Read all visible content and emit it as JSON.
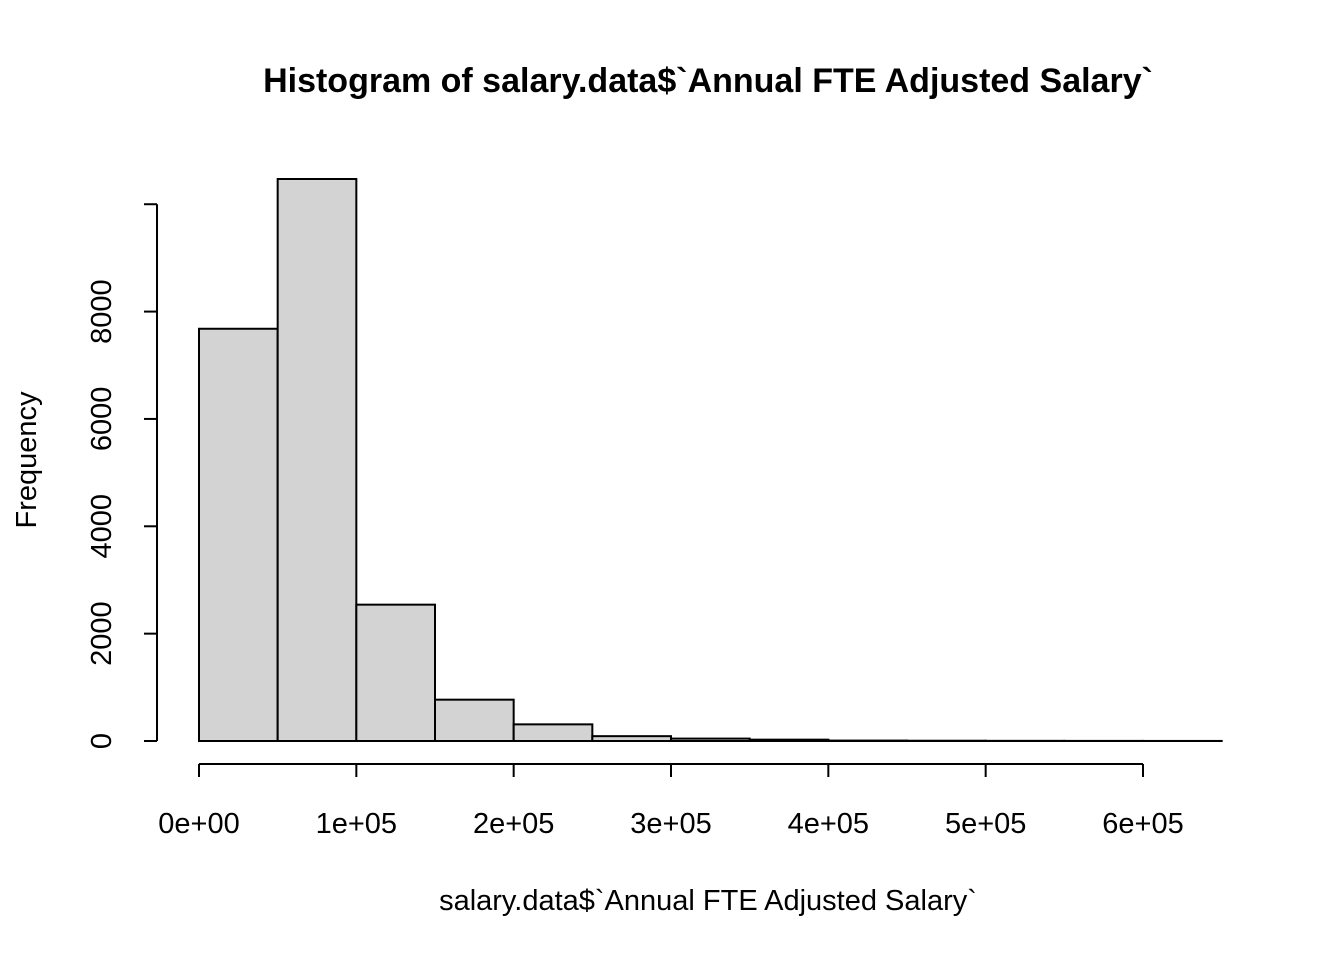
{
  "chart_data": {
    "type": "bar",
    "title": "Histogram of salary.data$`Annual FTE Adjusted Salary`",
    "xlabel": "salary.data$`Annual FTE Adjusted Salary`",
    "ylabel": "Frequency",
    "bin_edges": [
      0,
      50000,
      100000,
      150000,
      200000,
      250000,
      300000,
      350000,
      400000,
      450000,
      500000,
      550000,
      600000,
      650000
    ],
    "values": [
      7680,
      10470,
      2540,
      770,
      310,
      90,
      45,
      25,
      8,
      5,
      3,
      2,
      1
    ],
    "xlim": [
      0,
      650000
    ],
    "ylim": [
      0,
      10470
    ],
    "x_ticks": [
      0,
      100000,
      200000,
      300000,
      400000,
      500000,
      600000
    ],
    "x_tick_labels": [
      "0e+00",
      "1e+05",
      "2e+05",
      "3e+05",
      "4e+05",
      "5e+05",
      "6e+05"
    ],
    "y_ticks": [
      0,
      2000,
      4000,
      6000,
      8000
    ],
    "y_tick_labels": [
      "0",
      "2000",
      "4000",
      "6000",
      "8000"
    ],
    "bar_color": "#d3d3d3",
    "grid": false
  }
}
